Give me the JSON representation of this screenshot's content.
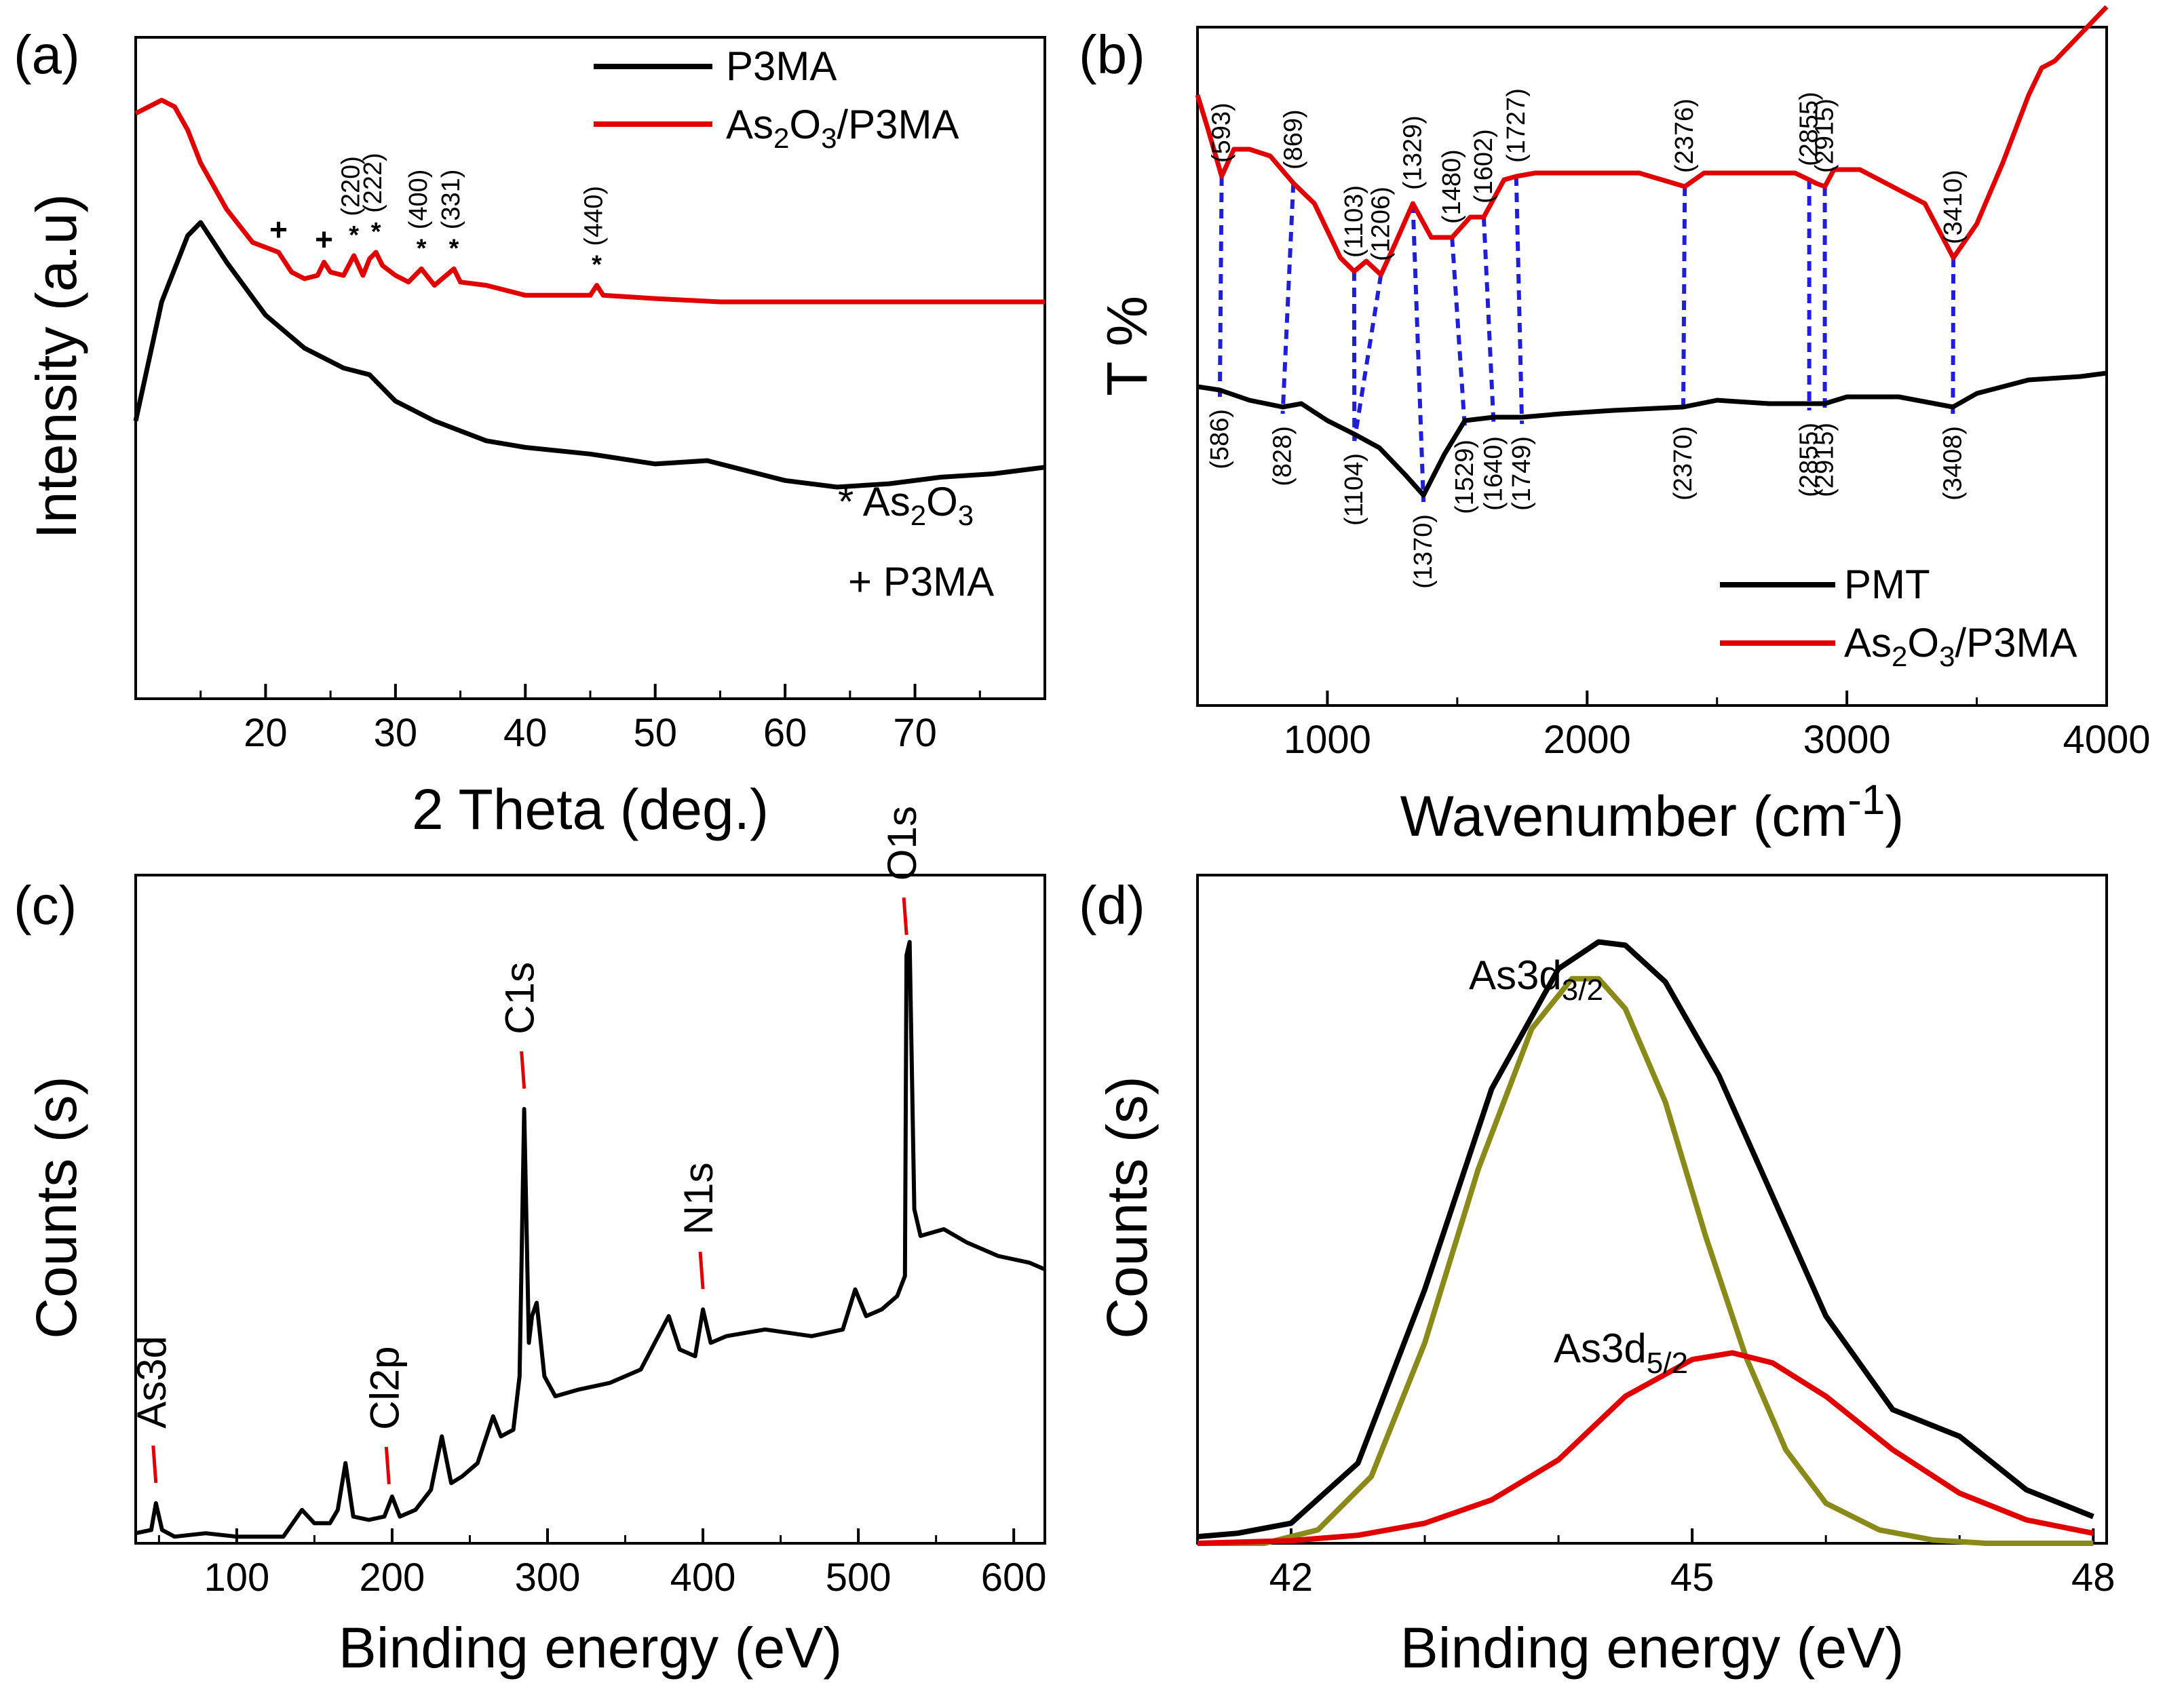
{
  "colors": {
    "black": "#000000",
    "red": "#e00000",
    "olive": "#8a8a1a",
    "blue": "#1f1fd6"
  },
  "chart_data": [
    {
      "panel": "(a)",
      "type": "line",
      "xlabel": "2 Theta (deg.)",
      "ylabel": "Intensity (a.u)",
      "xlim": [
        10,
        80
      ],
      "xticks": [
        20,
        30,
        40,
        50,
        60,
        70
      ],
      "xtick_labels": [
        "20",
        "30",
        "40",
        "50",
        "60",
        "70"
      ],
      "legend": [
        "P3MA",
        "As2O3/P3MA"
      ],
      "legend_display": [
        {
          "name": "P3MA",
          "text": "P3MA"
        },
        {
          "name": "As2O3/P3MA",
          "prefix": "As",
          "sub1": "2",
          "mid": "O",
          "sub2": "3",
          "suffix": "/P3MA"
        }
      ],
      "annotations": {
        "star": {
          "prefix": "* As",
          "sub1": "2",
          "mid": "O",
          "sub2": "3"
        },
        "plus": "+ P3MA"
      },
      "peak_labels": [
        "(220)",
        "(222)",
        "(400)",
        "(331)",
        "(440)"
      ],
      "peak_markers": [
        {
          "x": 21,
          "mark": "+"
        },
        {
          "x": 24.5,
          "mark": "+"
        },
        {
          "x": 26.8,
          "mark": "*",
          "label": "(220)"
        },
        {
          "x": 28.5,
          "mark": "*",
          "label": "(222)"
        },
        {
          "x": 32,
          "mark": "*",
          "label": "(400)"
        },
        {
          "x": 34.5,
          "mark": "*",
          "label": "(331)"
        },
        {
          "x": 45.5,
          "mark": "*",
          "label": "(440)"
        }
      ],
      "series": [
        {
          "name": "P3MA",
          "color": "#000000",
          "x": [
            10,
            12,
            14,
            15,
            17,
            20,
            23,
            26,
            28,
            30,
            33,
            37,
            40,
            45,
            50,
            54,
            56,
            60,
            64,
            68,
            72,
            76,
            80
          ],
          "y": [
            0.42,
            0.6,
            0.7,
            0.72,
            0.66,
            0.58,
            0.53,
            0.5,
            0.49,
            0.45,
            0.42,
            0.39,
            0.38,
            0.37,
            0.355,
            0.36,
            0.35,
            0.33,
            0.32,
            0.325,
            0.335,
            0.34,
            0.35
          ]
        },
        {
          "name": "As2O3/P3MA",
          "color": "#e00000",
          "x": [
            10,
            11,
            12,
            13,
            14,
            15,
            17,
            19,
            21,
            22,
            23,
            24,
            24.5,
            25,
            26,
            26.8,
            27.5,
            28,
            28.5,
            29,
            30,
            31,
            32,
            33,
            34.5,
            35,
            37,
            40,
            43,
            45,
            45.5,
            46,
            50,
            55,
            60,
            65,
            70,
            75,
            80
          ],
          "y": [
            0.885,
            0.895,
            0.905,
            0.895,
            0.86,
            0.81,
            0.74,
            0.69,
            0.675,
            0.645,
            0.635,
            0.64,
            0.66,
            0.645,
            0.64,
            0.67,
            0.64,
            0.665,
            0.675,
            0.655,
            0.64,
            0.63,
            0.65,
            0.625,
            0.65,
            0.63,
            0.625,
            0.61,
            0.61,
            0.61,
            0.625,
            0.61,
            0.605,
            0.6,
            0.6,
            0.6,
            0.6,
            0.6,
            0.6
          ]
        }
      ]
    },
    {
      "panel": "(b)",
      "type": "line",
      "xlabel_main": "Wavenumber (cm",
      "xlabel_sup": "-1",
      "xlabel_close": ")",
      "ylabel": "T %",
      "xlim": [
        500,
        4000
      ],
      "xticks": [
        1000,
        2000,
        3000,
        4000
      ],
      "xtick_labels": [
        "1000",
        "2000",
        "3000",
        "4000"
      ],
      "legend": [
        "PMT",
        "As2O3/P3MA"
      ],
      "legend_display": [
        {
          "name": "PMT",
          "text": "PMT"
        },
        {
          "name": "As2O3/P3MA",
          "prefix": "As",
          "sub1": "2",
          "mid": "O",
          "sub2": "3",
          "suffix": "/P3MA"
        }
      ],
      "red_peak_labels": [
        "(593)",
        "(869)",
        "(1103)",
        "(1206)",
        "(1329)",
        "(1480)",
        "(1602)",
        "(1727)",
        "(2376)",
        "(2855)",
        "(2915)",
        "(3410)"
      ],
      "red_peak_positions": [
        593,
        869,
        1103,
        1206,
        1329,
        1480,
        1602,
        1727,
        2376,
        2855,
        2915,
        3410
      ],
      "black_peak_labels": [
        "(586)",
        "(828)",
        "(1104)",
        "(1370)",
        "(1529)",
        "(1640)",
        "(1749)",
        "(2370)",
        "(2855)",
        "(2915)",
        "(3408)"
      ],
      "black_peak_positions": [
        586,
        828,
        1104,
        1370,
        1529,
        1640,
        1749,
        2370,
        2855,
        2915,
        3408
      ],
      "series": [
        {
          "name": "PMT",
          "color": "#000000",
          "x": [
            500,
            586,
            700,
            828,
            900,
            1000,
            1104,
            1200,
            1300,
            1370,
            1450,
            1529,
            1640,
            1749,
            1900,
            2100,
            2370,
            2500,
            2700,
            2855,
            2915,
            3000,
            3200,
            3408,
            3500,
            3700,
            3900,
            4000
          ],
          "y": [
            0.47,
            0.465,
            0.45,
            0.44,
            0.445,
            0.42,
            0.4,
            0.38,
            0.34,
            0.31,
            0.37,
            0.42,
            0.425,
            0.425,
            0.43,
            0.435,
            0.44,
            0.45,
            0.445,
            0.445,
            0.445,
            0.455,
            0.455,
            0.44,
            0.46,
            0.48,
            0.485,
            0.49
          ]
        },
        {
          "name": "As2O3/P3MA",
          "color": "#e00000",
          "x": [
            500,
            540,
            593,
            640,
            700,
            780,
            869,
            950,
            1050,
            1103,
            1150,
            1206,
            1260,
            1329,
            1400,
            1480,
            1550,
            1602,
            1680,
            1727,
            1800,
            2000,
            2200,
            2376,
            2450,
            2600,
            2800,
            2855,
            2880,
            2915,
            2950,
            3050,
            3200,
            3300,
            3410,
            3500,
            3600,
            3700,
            3750,
            3800,
            3900,
            4000
          ],
          "y": [
            0.9,
            0.85,
            0.78,
            0.82,
            0.82,
            0.81,
            0.77,
            0.74,
            0.66,
            0.64,
            0.655,
            0.635,
            0.68,
            0.74,
            0.69,
            0.69,
            0.72,
            0.72,
            0.775,
            0.78,
            0.785,
            0.785,
            0.785,
            0.765,
            0.785,
            0.785,
            0.785,
            0.775,
            0.77,
            0.765,
            0.79,
            0.79,
            0.76,
            0.74,
            0.66,
            0.71,
            0.8,
            0.9,
            0.94,
            0.95,
            0.99,
            1.03
          ]
        }
      ]
    },
    {
      "panel": "(c)",
      "type": "line",
      "xlabel": "Binding energy (eV)",
      "ylabel": "Counts (s)",
      "xlim": [
        35,
        620
      ],
      "xticks": [
        100,
        200,
        300,
        400,
        500,
        600
      ],
      "xtick_labels": [
        "100",
        "200",
        "300",
        "400",
        "500",
        "600"
      ],
      "peak_labels": [
        "As3d",
        "Cl2p",
        "C1s",
        "N1s",
        "O1s"
      ],
      "peak_label_positions": [
        48,
        198,
        285,
        400,
        531
      ],
      "series": [
        {
          "name": "survey",
          "color": "#000000",
          "x": [
            35,
            45,
            48,
            52,
            60,
            80,
            100,
            130,
            142,
            150,
            160,
            165,
            170,
            175,
            185,
            195,
            200,
            205,
            215,
            225,
            232,
            238,
            245,
            255,
            265,
            270,
            278,
            282,
            285,
            288,
            290,
            293,
            298,
            305,
            320,
            340,
            360,
            378,
            385,
            395,
            400,
            405,
            415,
            440,
            470,
            490,
            498,
            505,
            515,
            525,
            530,
            531,
            533,
            536,
            540,
            555,
            570,
            590,
            610,
            620
          ],
          "y": [
            0.015,
            0.02,
            0.06,
            0.02,
            0.01,
            0.015,
            0.01,
            0.01,
            0.05,
            0.03,
            0.03,
            0.05,
            0.12,
            0.04,
            0.035,
            0.04,
            0.07,
            0.04,
            0.05,
            0.08,
            0.16,
            0.09,
            0.1,
            0.12,
            0.19,
            0.16,
            0.17,
            0.25,
            0.65,
            0.3,
            0.34,
            0.36,
            0.25,
            0.22,
            0.23,
            0.24,
            0.26,
            0.34,
            0.29,
            0.28,
            0.35,
            0.3,
            0.31,
            0.32,
            0.31,
            0.32,
            0.38,
            0.34,
            0.35,
            0.37,
            0.4,
            0.88,
            0.9,
            0.5,
            0.46,
            0.47,
            0.45,
            0.43,
            0.42,
            0.41
          ]
        }
      ]
    },
    {
      "panel": "(d)",
      "type": "line",
      "xlabel": "Binding energy (eV)",
      "ylabel": "Counts (s)",
      "xlim": [
        41.3,
        48.1
      ],
      "xticks": [
        42,
        45,
        48
      ],
      "xtick_labels": [
        "42",
        "45",
        "48"
      ],
      "annotations": [
        {
          "name": "As3d3/2",
          "base": "As3d",
          "sub": "3/2"
        },
        {
          "name": "As3d5/2",
          "base": "As3d",
          "sub": "5/2"
        }
      ],
      "series": [
        {
          "name": "envelope",
          "color": "#000000",
          "x": [
            41.3,
            41.6,
            42.0,
            42.5,
            43.0,
            43.5,
            44.0,
            44.3,
            44.5,
            44.8,
            45.2,
            45.6,
            46.0,
            46.5,
            47.0,
            47.5,
            48.0
          ],
          "y": [
            0.01,
            0.015,
            0.03,
            0.12,
            0.38,
            0.68,
            0.86,
            0.9,
            0.895,
            0.84,
            0.7,
            0.52,
            0.34,
            0.2,
            0.16,
            0.08,
            0.04
          ]
        },
        {
          "name": "As3d3/2",
          "color": "#8a8a1a",
          "x": [
            41.3,
            41.8,
            42.2,
            42.6,
            43.0,
            43.4,
            43.8,
            44.1,
            44.3,
            44.5,
            44.8,
            45.1,
            45.4,
            45.7,
            46.0,
            46.4,
            46.8,
            47.2,
            48.0
          ],
          "y": [
            0.0,
            0.0,
            0.02,
            0.1,
            0.3,
            0.56,
            0.77,
            0.845,
            0.845,
            0.8,
            0.66,
            0.46,
            0.28,
            0.14,
            0.06,
            0.02,
            0.005,
            0.0,
            0.0
          ]
        },
        {
          "name": "As3d5/2",
          "color": "#e00000",
          "x": [
            41.3,
            42.0,
            42.5,
            43.0,
            43.5,
            44.0,
            44.5,
            45.0,
            45.3,
            45.6,
            46.0,
            46.5,
            47.0,
            47.5,
            48.0
          ],
          "y": [
            0.0,
            0.004,
            0.012,
            0.03,
            0.065,
            0.125,
            0.22,
            0.275,
            0.285,
            0.27,
            0.22,
            0.14,
            0.075,
            0.035,
            0.015
          ]
        }
      ]
    }
  ]
}
